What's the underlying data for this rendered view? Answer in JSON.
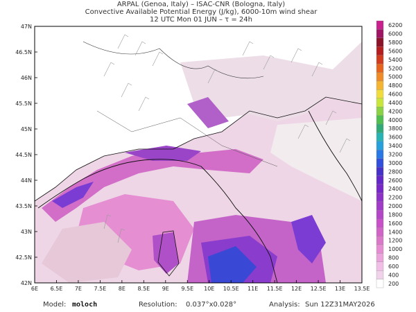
{
  "header": {
    "lines": [
      "ARPAL (Genoa, Italy)  –  ISAC-CNR (Bologna, Italy)",
      "Convective Available Potential Energy (J/kg), 6000-10m wind shear",
      "12 UTC Mon 01 JUN  –  τ = 24h"
    ]
  },
  "map": {
    "lat_labels": [
      "47N",
      "46.5N",
      "46N",
      "45.5N",
      "45N",
      "44.5N",
      "44N",
      "43.5N",
      "43N",
      "42.5N",
      "42N"
    ],
    "lon_labels": [
      "6E",
      "6.5E",
      "7E",
      "7.5E",
      "8E",
      "8.5E",
      "9E",
      "9.5E",
      "10E",
      "10.5E",
      "11E",
      "11.5E",
      "12E",
      "12.5E",
      "13E",
      "13.5E"
    ]
  },
  "colorbar": {
    "labels": [
      "6200",
      "6000",
      "5800",
      "5600",
      "5400",
      "5200",
      "5000",
      "4800",
      "4600",
      "4400",
      "4200",
      "4000",
      "3800",
      "3600",
      "3400",
      "3200",
      "3000",
      "2800",
      "2600",
      "2400",
      "2200",
      "2000",
      "1800",
      "1600",
      "1400",
      "1200",
      "1000",
      "800",
      "600",
      "400",
      "200"
    ],
    "colors": [
      "#c8208c",
      "#a01464",
      "#8c1428",
      "#b41e1e",
      "#d23c1e",
      "#e6641e",
      "#f08c28",
      "#f5b432",
      "#f0dc3c",
      "#c8e63c",
      "#8cd246",
      "#50be50",
      "#32aa78",
      "#28b4b4",
      "#28a0dc",
      "#2878e6",
      "#3250dc",
      "#4632c8",
      "#6428c8",
      "#7828c8",
      "#8c32c8",
      "#a03cc8",
      "#b446c8",
      "#c850c8",
      "#d264c8",
      "#dc78c8",
      "#e68cd2",
      "#eba5dc",
      "#f0bee6",
      "#f0d2eb",
      "#ffffff"
    ]
  },
  "footer": {
    "model_label": "Model:",
    "model": "moloch",
    "resolution_label": "Resolution:",
    "resolution": "0.037°x0.028°",
    "analysis_label": "Analysis:",
    "analysis": "Sun 12Z31MAY2026"
  }
}
